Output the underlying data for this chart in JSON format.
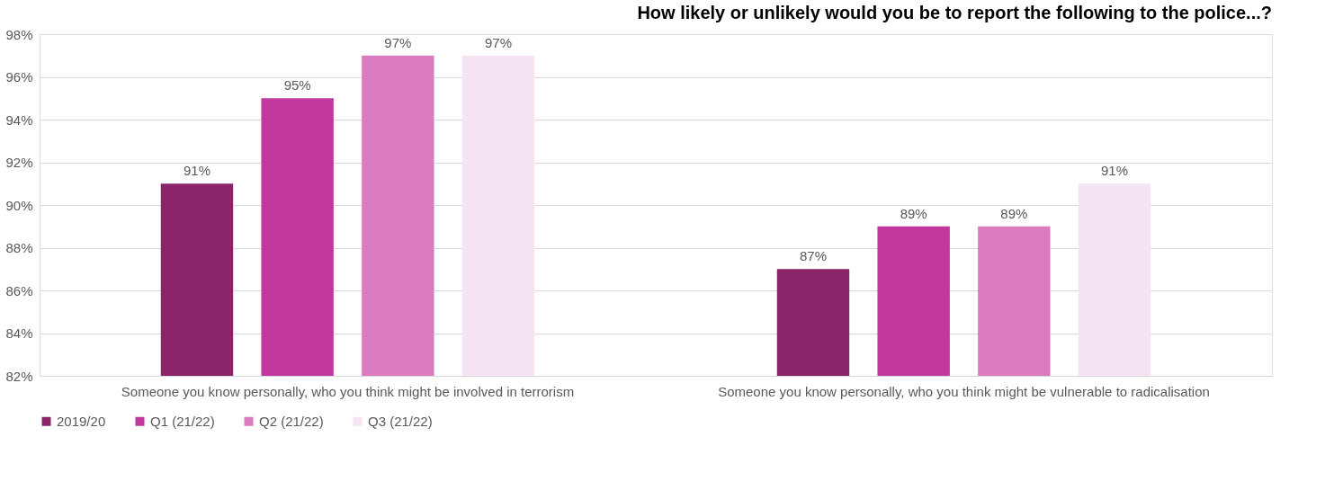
{
  "chart_data": {
    "type": "bar",
    "title": "How likely or unlikely would you be to report the following to the police...?",
    "categories": [
      "Someone you know personally, who you think might be involved in terrorism",
      "Someone you know personally, who you think might be vulnerable to radicalisation"
    ],
    "series": [
      {
        "name": "2019/20",
        "color": "#8b2468",
        "values": [
          91,
          87
        ],
        "value_labels": [
          "91%",
          "87%"
        ]
      },
      {
        "name": "Q1 (21/22)",
        "color": "#c2379e",
        "values": [
          95,
          89
        ],
        "value_labels": [
          "95%",
          "89%"
        ]
      },
      {
        "name": "Q2 (21/22)",
        "color": "#da7bc0",
        "values": [
          97,
          89
        ],
        "value_labels": [
          "97%",
          "89%"
        ]
      },
      {
        "name": "Q3 (21/22)",
        "color": "#f5e4f1",
        "values": [
          97,
          91
        ],
        "value_labels": [
          "97%",
          "91%"
        ]
      }
    ],
    "ylim": [
      82,
      98
    ],
    "yticks": [
      {
        "value": 82,
        "label": "82%"
      },
      {
        "value": 84,
        "label": "84%"
      },
      {
        "value": 86,
        "label": "86%"
      },
      {
        "value": 88,
        "label": "88%"
      },
      {
        "value": 90,
        "label": "90%"
      },
      {
        "value": 92,
        "label": "92%"
      },
      {
        "value": 94,
        "label": "94%"
      },
      {
        "value": 96,
        "label": "96%"
      },
      {
        "value": 98,
        "label": "98%"
      }
    ],
    "grid": "y",
    "legend": "bottom"
  }
}
